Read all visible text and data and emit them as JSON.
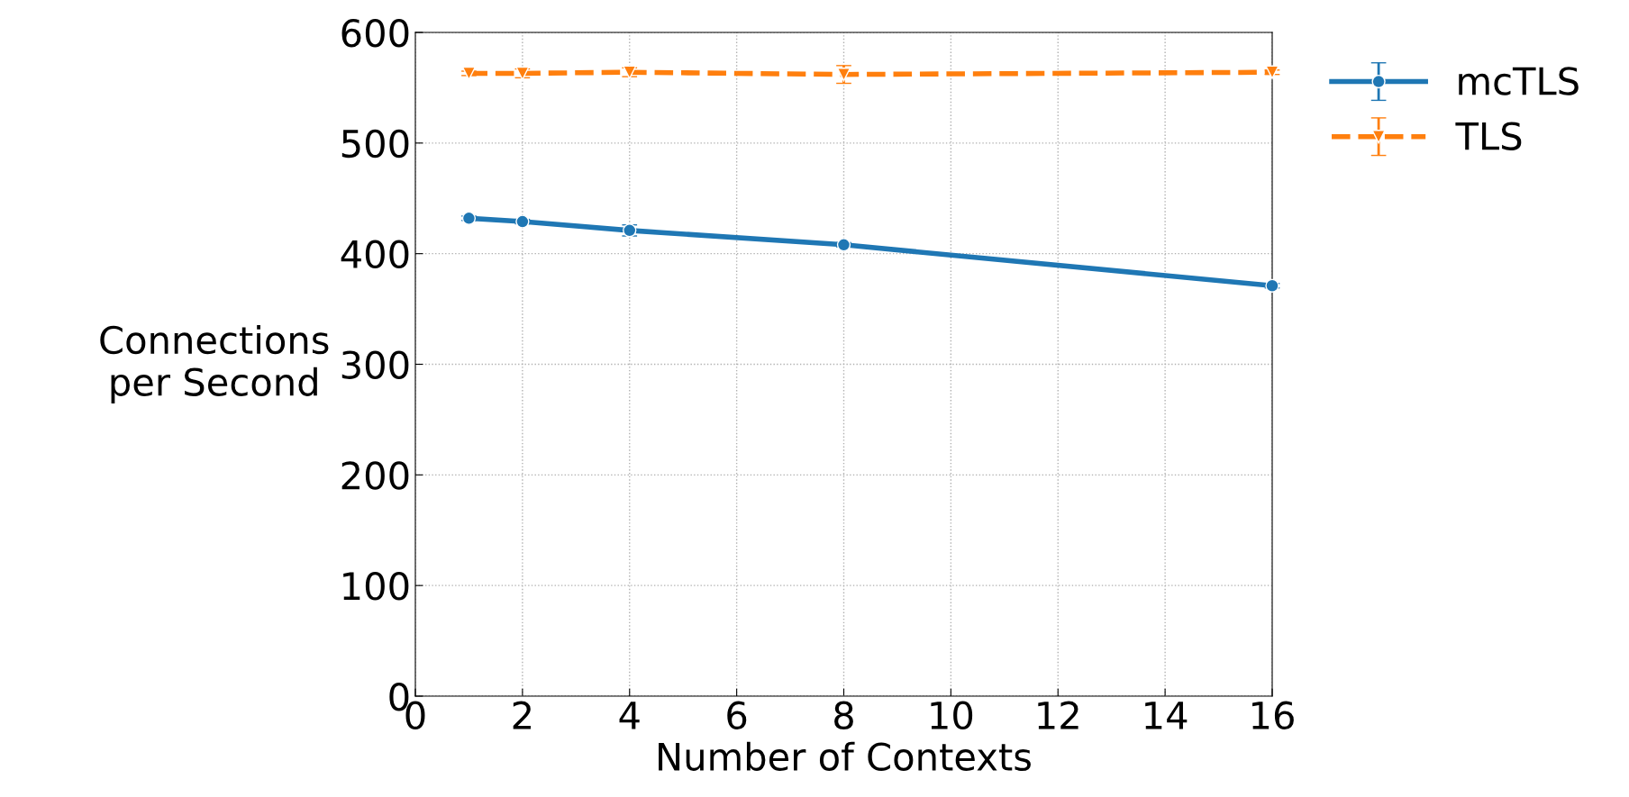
{
  "chart_data": {
    "type": "line",
    "xlabel": "Number of Contexts",
    "ylabel": "Connections\nper Second",
    "x": [
      1,
      2,
      4,
      8,
      16
    ],
    "series": [
      {
        "name": "mcTLS",
        "color": "#1f77b4",
        "marker": "circle",
        "line_style": "solid",
        "values": [
          432,
          429,
          421,
          408,
          371
        ],
        "errors": [
          2,
          2,
          5,
          2,
          2
        ]
      },
      {
        "name": "TLS",
        "color": "#ff7f0e",
        "marker": "triangle",
        "line_style": "dashed",
        "values": [
          563,
          563,
          564,
          562,
          564
        ],
        "errors": [
          2,
          4,
          4,
          8,
          2
        ]
      }
    ],
    "xlim": [
      0,
      16
    ],
    "xticks": [
      0,
      2,
      4,
      6,
      8,
      10,
      12,
      14,
      16
    ],
    "ylim": [
      0,
      600
    ],
    "yticks": [
      0,
      100,
      200,
      300,
      400,
      500,
      600
    ],
    "grid": true,
    "legend": "top right"
  }
}
